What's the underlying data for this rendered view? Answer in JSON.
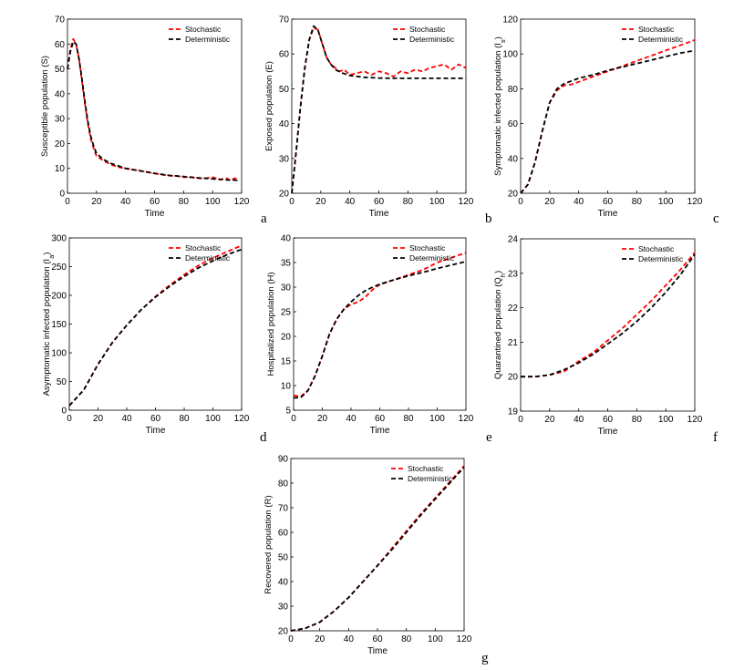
{
  "colors": {
    "stochastic": "#ff0000",
    "deterministic": "#000000",
    "axis": "#000000",
    "background": "#ffffff"
  },
  "chart_data": [
    {
      "panel": "a",
      "type": "line",
      "xlabel": "Time",
      "ylabel": "Susceptible population (S)",
      "xlim": [
        0,
        120
      ],
      "ylim": [
        0,
        70
      ],
      "xticks": [
        0,
        20,
        40,
        60,
        80,
        100,
        120
      ],
      "yticks": [
        0,
        10,
        20,
        30,
        40,
        50,
        60,
        70
      ],
      "legend_position": "top-right",
      "grid": false,
      "series": [
        {
          "name": "Stochastic",
          "style": "dashed",
          "color": "#ff0000",
          "x": [
            0,
            2,
            4,
            6,
            8,
            10,
            12,
            14,
            16,
            18,
            20,
            25,
            30,
            35,
            40,
            45,
            50,
            55,
            60,
            65,
            70,
            75,
            80,
            85,
            90,
            95,
            100,
            105,
            110,
            112,
            115,
            118
          ],
          "y": [
            50,
            58,
            62,
            60,
            54,
            45,
            36,
            28,
            22,
            18,
            15,
            13,
            11.5,
            10.5,
            10,
            9.5,
            9,
            8.5,
            8,
            7.5,
            7,
            7,
            6.5,
            6.5,
            6,
            6,
            6.5,
            5.5,
            6,
            5,
            6,
            6
          ]
        },
        {
          "name": "Deterministic",
          "style": "dashed",
          "color": "#000000",
          "x": [
            0,
            2,
            4,
            6,
            8,
            10,
            12,
            14,
            16,
            18,
            20,
            25,
            30,
            35,
            40,
            45,
            50,
            60,
            70,
            80,
            90,
            100,
            110,
            118
          ],
          "y": [
            50,
            57,
            61,
            60,
            54,
            46,
            37,
            29,
            23,
            19,
            16,
            13.5,
            12,
            11,
            10,
            9.5,
            9,
            8,
            7.2,
            6.7,
            6.2,
            5.8,
            5.4,
            5.2
          ]
        }
      ]
    },
    {
      "panel": "b",
      "type": "line",
      "xlabel": "Time",
      "ylabel": "Exposed population (E)",
      "xlim": [
        0,
        120
      ],
      "ylim": [
        20,
        70
      ],
      "xticks": [
        0,
        20,
        40,
        60,
        80,
        100,
        120
      ],
      "yticks": [
        20,
        30,
        40,
        50,
        60,
        70
      ],
      "legend_position": "top-right",
      "grid": false,
      "series": [
        {
          "name": "Stochastic",
          "style": "dashed",
          "color": "#ff0000",
          "x": [
            0,
            3,
            6,
            9,
            12,
            15,
            18,
            21,
            24,
            27,
            30,
            33,
            36,
            40,
            45,
            50,
            55,
            60,
            65,
            70,
            75,
            80,
            85,
            90,
            95,
            100,
            105,
            110,
            115,
            120
          ],
          "y": [
            20,
            32,
            45,
            56,
            64,
            67.5,
            67,
            63,
            59,
            57,
            56,
            55,
            55.5,
            54,
            54.5,
            55,
            54,
            55,
            54.5,
            53.5,
            55,
            54.5,
            55.5,
            55,
            56,
            56.5,
            57,
            55.5,
            57,
            56
          ]
        },
        {
          "name": "Deterministic",
          "style": "dashed",
          "color": "#000000",
          "x": [
            0,
            3,
            6,
            9,
            12,
            15,
            18,
            21,
            24,
            27,
            30,
            35,
            40,
            50,
            60,
            70,
            80,
            90,
            100,
            110,
            120
          ],
          "y": [
            20,
            32,
            45,
            56,
            64,
            68,
            67,
            63,
            59,
            57,
            55.5,
            54.5,
            53.8,
            53.3,
            53.1,
            53,
            53,
            53,
            53,
            53,
            53
          ]
        }
      ]
    },
    {
      "panel": "c",
      "type": "line",
      "xlabel": "Time",
      "ylabel": "Symptomatic infected population (I_s)",
      "xlim": [
        0,
        120
      ],
      "ylim": [
        20,
        120
      ],
      "xticks": [
        0,
        20,
        40,
        60,
        80,
        100,
        120
      ],
      "yticks": [
        20,
        40,
        60,
        80,
        100,
        120
      ],
      "legend_position": "top-right",
      "grid": false,
      "series": [
        {
          "name": "Stochastic",
          "style": "dashed",
          "color": "#ff0000",
          "x": [
            0,
            5,
            10,
            15,
            20,
            25,
            30,
            35,
            40,
            50,
            60,
            70,
            80,
            90,
            100,
            110,
            120
          ],
          "y": [
            20,
            25,
            38,
            56,
            72,
            79,
            82,
            82.5,
            84,
            87,
            90,
            93,
            96,
            99,
            102,
            105,
            108
          ]
        },
        {
          "name": "Deterministic",
          "style": "dashed",
          "color": "#000000",
          "x": [
            0,
            5,
            10,
            15,
            20,
            25,
            30,
            35,
            40,
            50,
            60,
            70,
            80,
            90,
            100,
            110,
            120
          ],
          "y": [
            20,
            25,
            38,
            56,
            72,
            80,
            83,
            84.5,
            86,
            88,
            90.5,
            92.5,
            94.5,
            96.5,
            98.5,
            100.5,
            102
          ]
        }
      ]
    },
    {
      "panel": "d",
      "type": "line",
      "xlabel": "Time",
      "ylabel": "Asymptomatic infected population (I_a)",
      "xlim": [
        0,
        120
      ],
      "ylim": [
        0,
        300
      ],
      "xticks": [
        0,
        20,
        40,
        60,
        80,
        100,
        120
      ],
      "yticks": [
        0,
        50,
        100,
        150,
        200,
        250,
        300
      ],
      "legend_position": "top-right",
      "grid": false,
      "series": [
        {
          "name": "Stochastic",
          "style": "dashed",
          "color": "#ff0000",
          "x": [
            0,
            10,
            20,
            30,
            40,
            50,
            60,
            70,
            80,
            90,
            100,
            110,
            120
          ],
          "y": [
            8,
            35,
            80,
            118,
            148,
            175,
            198,
            218,
            236,
            252,
            265,
            276,
            287
          ]
        },
        {
          "name": "Deterministic",
          "style": "dashed",
          "color": "#000000",
          "x": [
            0,
            10,
            20,
            30,
            40,
            50,
            60,
            70,
            80,
            90,
            100,
            110,
            120
          ],
          "y": [
            8,
            35,
            80,
            118,
            148,
            175,
            197,
            216,
            233,
            248,
            260,
            271,
            280
          ]
        }
      ]
    },
    {
      "panel": "e",
      "type": "line",
      "xlabel": "Time",
      "ylabel": "Hospitalized population (H)",
      "xlim": [
        0,
        120
      ],
      "ylim": [
        5,
        40
      ],
      "xticks": [
        0,
        20,
        40,
        60,
        80,
        100,
        120
      ],
      "yticks": [
        5,
        10,
        15,
        20,
        25,
        30,
        35,
        40
      ],
      "legend_position": "top-right",
      "grid": false,
      "series": [
        {
          "name": "Stochastic",
          "style": "dashed",
          "color": "#ff0000",
          "x": [
            0,
            5,
            10,
            15,
            20,
            25,
            30,
            35,
            40,
            45,
            50,
            55,
            60,
            70,
            80,
            90,
            100,
            110,
            120
          ],
          "y": [
            8,
            7.8,
            9,
            12,
            16,
            20.5,
            23.5,
            25.5,
            26.5,
            27,
            28,
            29.5,
            30.5,
            31.5,
            32.5,
            33.5,
            35,
            36,
            37
          ]
        },
        {
          "name": "Deterministic",
          "style": "dashed",
          "color": "#000000",
          "x": [
            0,
            5,
            10,
            15,
            20,
            25,
            30,
            35,
            40,
            45,
            50,
            55,
            60,
            70,
            80,
            90,
            100,
            110,
            120
          ],
          "y": [
            7.5,
            7.6,
            9,
            12,
            16,
            20.5,
            23.5,
            25.5,
            27,
            28.3,
            29.3,
            30,
            30.6,
            31.5,
            32.3,
            33,
            33.8,
            34.5,
            35.2
          ]
        }
      ]
    },
    {
      "panel": "f",
      "type": "line",
      "xlabel": "Time",
      "ylabel": "Quarantined population (Q_h)",
      "xlim": [
        0,
        120
      ],
      "ylim": [
        19,
        24
      ],
      "xticks": [
        0,
        20,
        40,
        60,
        80,
        100,
        120
      ],
      "yticks": [
        19,
        20,
        21,
        22,
        23,
        24
      ],
      "legend_position": "top-right",
      "grid": false,
      "series": [
        {
          "name": "Stochastic",
          "style": "dashed",
          "color": "#ff0000",
          "x": [
            0,
            10,
            20,
            30,
            40,
            50,
            60,
            70,
            80,
            90,
            100,
            110,
            120
          ],
          "y": [
            20,
            20,
            20.05,
            20.15,
            20.45,
            20.7,
            21.05,
            21.4,
            21.8,
            22.2,
            22.65,
            23.1,
            23.6
          ]
        },
        {
          "name": "Deterministic",
          "style": "dashed",
          "color": "#000000",
          "x": [
            0,
            10,
            20,
            30,
            40,
            50,
            60,
            70,
            80,
            90,
            100,
            110,
            120
          ],
          "y": [
            20,
            20,
            20.05,
            20.2,
            20.4,
            20.65,
            20.95,
            21.25,
            21.6,
            22,
            22.45,
            22.95,
            23.55
          ]
        }
      ]
    },
    {
      "panel": "g",
      "type": "line",
      "xlabel": "Time",
      "ylabel": "Recovered population (R)",
      "xlim": [
        0,
        120
      ],
      "ylim": [
        20,
        90
      ],
      "xticks": [
        0,
        20,
        40,
        60,
        80,
        100,
        120
      ],
      "yticks": [
        20,
        30,
        40,
        50,
        60,
        70,
        80,
        90
      ],
      "legend_position": "top-right",
      "grid": false,
      "series": [
        {
          "name": "Stochastic",
          "style": "dashed",
          "color": "#ff0000",
          "x": [
            0,
            10,
            20,
            30,
            40,
            50,
            60,
            70,
            80,
            90,
            100,
            110,
            120
          ],
          "y": [
            20,
            21,
            23.5,
            28,
            33.5,
            40,
            46.5,
            53.5,
            60.5,
            67.5,
            74,
            80.5,
            87
          ]
        },
        {
          "name": "Deterministic",
          "style": "dashed",
          "color": "#000000",
          "x": [
            0,
            10,
            20,
            30,
            40,
            50,
            60,
            70,
            80,
            90,
            100,
            110,
            120
          ],
          "y": [
            20,
            21,
            23.5,
            28,
            33.5,
            40,
            46.5,
            53,
            60,
            67,
            73.5,
            80,
            86.5
          ]
        }
      ]
    }
  ]
}
